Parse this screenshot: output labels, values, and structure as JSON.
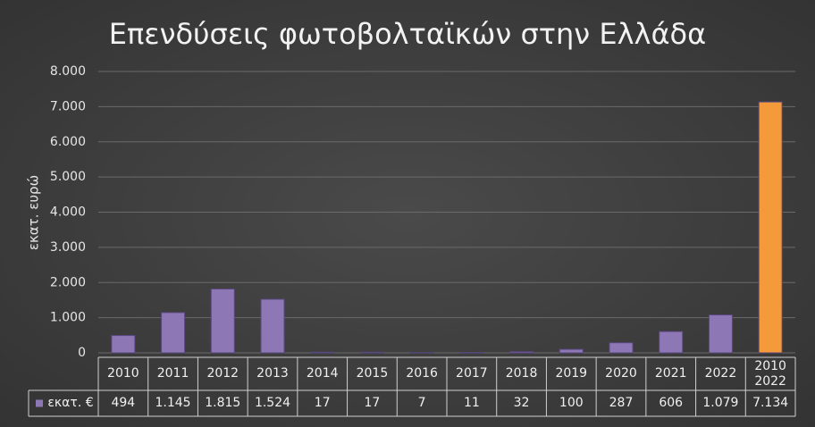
{
  "chart_data": {
    "type": "bar",
    "title": "Επενδύσεις φωτοβολταϊκών στην Ελλάδα",
    "y_label": "εκατ. ευρώ",
    "categories": [
      "2010",
      "2011",
      "2012",
      "2013",
      "2014",
      "2015",
      "2016",
      "2017",
      "2018",
      "2019",
      "2020",
      "2021",
      "2022",
      "2010\n2022"
    ],
    "series": [
      {
        "name": "εκατ. €",
        "color": "#8e77b5",
        "colors": [
          "#8e77b5",
          "#8e77b5",
          "#8e77b5",
          "#8e77b5",
          "#8e77b5",
          "#8e77b5",
          "#8e77b5",
          "#8e77b5",
          "#8e77b5",
          "#8e77b5",
          "#8e77b5",
          "#8e77b5",
          "#8e77b5",
          "#f59a3a"
        ],
        "values": [
          494,
          1145,
          1815,
          1524,
          17,
          17,
          7,
          11,
          32,
          100,
          287,
          606,
          1079,
          7134
        ],
        "value_labels": [
          "494",
          "1.145",
          "1.815",
          "1.524",
          "17",
          "17",
          "7",
          "11",
          "32",
          "100",
          "287",
          "606",
          "1.079",
          "7.134"
        ]
      }
    ],
    "ylim": [
      0,
      8000
    ],
    "yticks": [
      {
        "value": 0,
        "label": "0"
      },
      {
        "value": 1000,
        "label": "1.000"
      },
      {
        "value": 2000,
        "label": "2.000"
      },
      {
        "value": 3000,
        "label": "3.000"
      },
      {
        "value": 4000,
        "label": "4.000"
      },
      {
        "value": 5000,
        "label": "5.000"
      },
      {
        "value": 6000,
        "label": "6.000"
      },
      {
        "value": 7000,
        "label": "7.000"
      },
      {
        "value": 8000,
        "label": "8.000"
      }
    ],
    "grid": true
  }
}
